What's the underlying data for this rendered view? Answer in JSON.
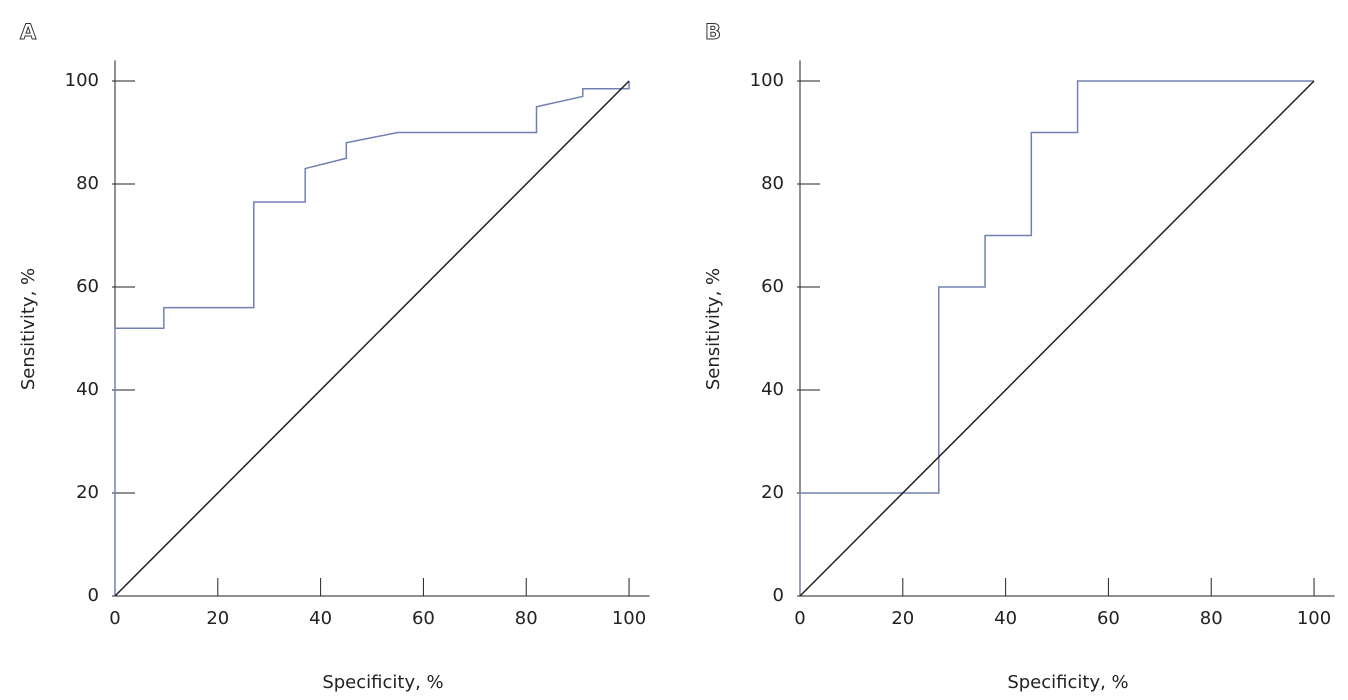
{
  "chart_data": [
    {
      "type": "line",
      "title": "A",
      "x_label": "Specificity, %",
      "y_label": "Sensitivity, %",
      "xlim": [
        0,
        104
      ],
      "ylim": [
        0,
        104
      ],
      "xticks": [
        0,
        20,
        40,
        60,
        80,
        100
      ],
      "yticks": [
        0,
        20,
        40,
        60,
        80,
        100
      ],
      "series": [
        {
          "color": "#7080b4",
          "x": [
            0,
            0,
            9.5,
            9.5,
            27,
            27,
            37,
            37,
            45,
            45,
            55,
            82,
            82,
            91,
            91,
            100,
            100
          ],
          "values": [
            0,
            52,
            52,
            56,
            56,
            76.5,
            76.5,
            83,
            85,
            88,
            90,
            90,
            95,
            97,
            98.5,
            98.5,
            100
          ]
        },
        {
          "color": "#222222",
          "x": [
            0,
            100
          ],
          "values": [
            0,
            100
          ]
        }
      ]
    },
    {
      "type": "line",
      "title": "B",
      "x_label": "Specificity, %",
      "y_label": "Sensitivity, %",
      "xlim": [
        0,
        104
      ],
      "ylim": [
        0,
        104
      ],
      "xticks": [
        0,
        20,
        40,
        60,
        80,
        100
      ],
      "yticks": [
        0,
        20,
        40,
        60,
        80,
        100
      ],
      "series": [
        {
          "color": "#7080b4",
          "x": [
            0,
            0,
            27,
            27,
            36,
            36,
            45,
            45,
            54,
            54,
            100
          ],
          "values": [
            0,
            20,
            20,
            60,
            60,
            70,
            70,
            90,
            90,
            100,
            100
          ]
        },
        {
          "color": "#222222",
          "x": [
            0,
            100
          ],
          "values": [
            0,
            100
          ]
        }
      ]
    }
  ]
}
